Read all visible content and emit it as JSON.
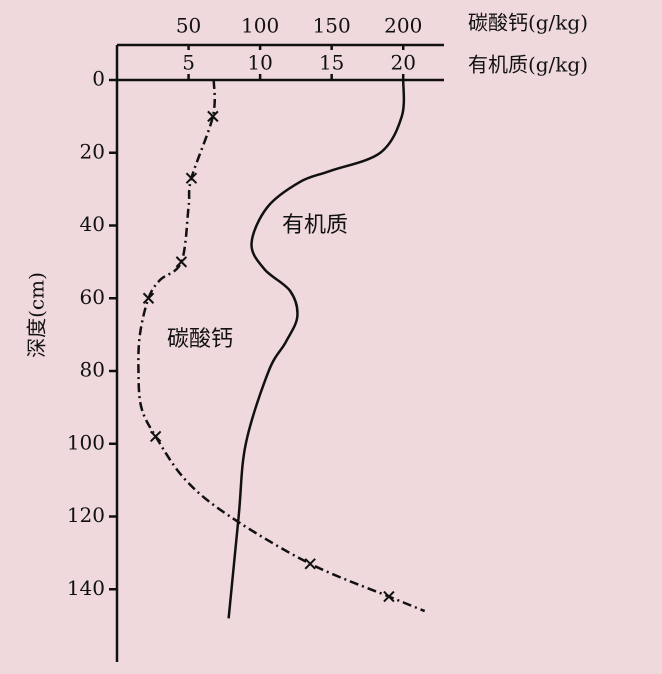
{
  "chart_data": {
    "type": "profile",
    "x_label": "有机质(g/kg)",
    "x2_label": "碳酸钙(g/kg)",
    "y_label": "深度(cm)",
    "xlim": [
      0,
      22.5
    ],
    "xticks": [
      5,
      10,
      15,
      20
    ],
    "x2lim": [
      0,
      225
    ],
    "x2ticks": [
      50,
      100,
      150,
      200
    ],
    "ylim": [
      0,
      160
    ],
    "yticks": [
      0,
      20,
      40,
      60,
      80,
      100,
      120,
      140
    ],
    "y_inverted": true,
    "series": [
      {
        "name": "有机质",
        "color": "#111111",
        "axis": "x",
        "style": "solid",
        "markers": false,
        "values": [
          20,
          19.9,
          18.4,
          14.9,
          12.8,
          10.5,
          9.4,
          10.3,
          12.1,
          12.6,
          11.8,
          10.6,
          9,
          8.5,
          7.8
        ],
        "depth": [
          0,
          10,
          20,
          25,
          28,
          35,
          45,
          52,
          58,
          65,
          72,
          80,
          100,
          120,
          148
        ]
      },
      {
        "name": "碳酸钙",
        "color": "#111111",
        "axis": "x2",
        "style": "dashdot",
        "markers": true,
        "values": [
          67.6,
          67,
          52,
          50,
          45,
          30,
          22,
          16,
          15,
          17,
          27,
          48,
          79,
          135,
          190,
          215
        ],
        "depth": [
          0,
          10,
          27,
          35,
          50,
          55,
          60,
          70,
          80,
          90,
          98,
          110,
          120,
          133,
          142,
          146
        ],
        "marker_index": [
          1,
          2,
          4,
          6,
          10,
          13,
          14
        ]
      }
    ]
  }
}
